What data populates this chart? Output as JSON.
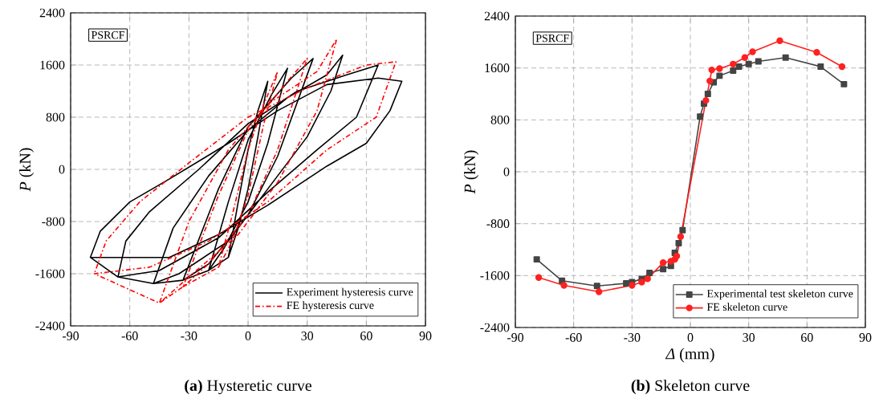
{
  "chart_data": [
    {
      "type": "line",
      "title": "**(a)** Hysteretic curve",
      "ylabel": "*P* (kN)",
      "annotations": [
        "PSRCF"
      ],
      "xlim": [
        -90,
        90
      ],
      "xticks": [
        -90,
        -60,
        -30,
        0,
        30,
        60,
        90
      ],
      "ylim": [
        -2400,
        2400
      ],
      "yticks": [
        -2400,
        -1600,
        -800,
        0,
        800,
        1600,
        2400
      ],
      "grid": true,
      "legend": "bottom right",
      "marker": "none",
      "series": [
        {
          "name": "Experiment hysteresis curve",
          "color": "#000000",
          "line_style": "solid",
          "x": [
            -10,
            -5,
            0,
            5,
            10,
            5,
            0,
            -5,
            -10,
            -20,
            -12,
            0,
            10,
            20,
            12,
            0,
            -10,
            -20,
            -33,
            -20,
            0,
            15,
            33,
            22,
            0,
            -15,
            -33,
            -48,
            -35,
            -10,
            10,
            30,
            42,
            48,
            40,
            20,
            0,
            -20,
            -38,
            -48,
            -66,
            -45,
            -15,
            10,
            35,
            55,
            66,
            50,
            25,
            0,
            -25,
            -50,
            -62,
            -66,
            -80,
            -40,
            -15,
            10,
            40,
            60,
            72,
            78,
            66,
            40,
            15,
            -10,
            -40,
            -60,
            -75,
            -80
          ],
          "values": [
            -1350,
            -900,
            -300,
            500,
            1350,
            900,
            300,
            -500,
            -1350,
            -1550,
            -1200,
            -500,
            400,
            1550,
            1150,
            450,
            -500,
            -1550,
            -1700,
            -1450,
            -700,
            200,
            1700,
            1400,
            650,
            -300,
            -1700,
            -1750,
            -1600,
            -1100,
            -300,
            500,
            1200,
            1750,
            1450,
            1100,
            600,
            -100,
            -900,
            -1750,
            -1650,
            -1550,
            -1050,
            -350,
            300,
            800,
            1600,
            1450,
            1200,
            700,
            0,
            -650,
            -1100,
            -1650,
            -1350,
            -1350,
            -1000,
            -550,
            50,
            400,
            900,
            1350,
            1400,
            1300,
            900,
            400,
            -150,
            -500,
            -950,
            -1350
          ]
        },
        {
          "name": "FE hysteresis curve",
          "color": "#ff0000",
          "line_style": "dashed",
          "x": [
            -15,
            -8,
            0,
            8,
            15,
            8,
            0,
            -8,
            -15,
            -33,
            -20,
            0,
            15,
            30,
            20,
            0,
            -15,
            -33,
            -45,
            -30,
            -5,
            15,
            35,
            45,
            35,
            10,
            -10,
            -30,
            -45,
            -78,
            -50,
            -20,
            10,
            40,
            65,
            75,
            60,
            30,
            0,
            -30,
            -55,
            -72,
            -78
          ],
          "values": [
            -1500,
            -1100,
            -400,
            700,
            1500,
            1000,
            300,
            -700,
            -1500,
            -1800,
            -1450,
            -700,
            300,
            1700,
            1350,
            600,
            -400,
            -1800,
            -2050,
            -1650,
            -1000,
            -200,
            900,
            2000,
            1500,
            1000,
            300,
            -800,
            -2050,
            -1600,
            -1500,
            -1100,
            -500,
            300,
            800,
            1650,
            1600,
            1250,
            800,
            100,
            -500,
            -1100,
            -1600
          ]
        }
      ]
    },
    {
      "type": "line",
      "title": "**(b)** Skeleton curve",
      "xlabel": "*Δ* (mm)",
      "ylabel": "*P* (kN)",
      "annotations": [
        "PSRCF"
      ],
      "xlim": [
        -90,
        90
      ],
      "xticks": [
        -90,
        -60,
        -30,
        0,
        30,
        60,
        90
      ],
      "ylim": [
        -2400,
        2400
      ],
      "yticks": [
        -2400,
        -1600,
        -800,
        0,
        800,
        1600,
        2400
      ],
      "grid": true,
      "legend": "bottom right",
      "series": [
        {
          "name": "Experimental test skeleton curve",
          "color": "#444444",
          "marker": "square",
          "x": [
            -79,
            -66,
            -48,
            -33,
            -30,
            -25,
            -21,
            -14,
            -10,
            -8,
            -6,
            -4,
            5,
            7,
            9,
            12,
            15,
            22,
            25,
            30,
            35,
            49,
            67,
            79
          ],
          "values": [
            -1350,
            -1680,
            -1760,
            -1720,
            -1700,
            -1650,
            -1560,
            -1500,
            -1450,
            -1250,
            -1100,
            -900,
            850,
            1050,
            1200,
            1380,
            1480,
            1560,
            1620,
            1660,
            1700,
            1760,
            1620,
            1350
          ]
        },
        {
          "name": "FE  skeleton curve",
          "color": "#ff2020",
          "marker": "circle",
          "x": [
            -78,
            -65,
            -47,
            -30,
            -25,
            -22,
            -14,
            -10,
            -8,
            -7,
            -5,
            8,
            10,
            11,
            15,
            22,
            28,
            32,
            46,
            65,
            78
          ],
          "values": [
            -1630,
            -1750,
            -1850,
            -1750,
            -1700,
            -1650,
            -1400,
            -1380,
            -1350,
            -1300,
            -1000,
            1100,
            1400,
            1570,
            1590,
            1660,
            1760,
            1850,
            2020,
            1840,
            1620
          ]
        }
      ]
    }
  ]
}
